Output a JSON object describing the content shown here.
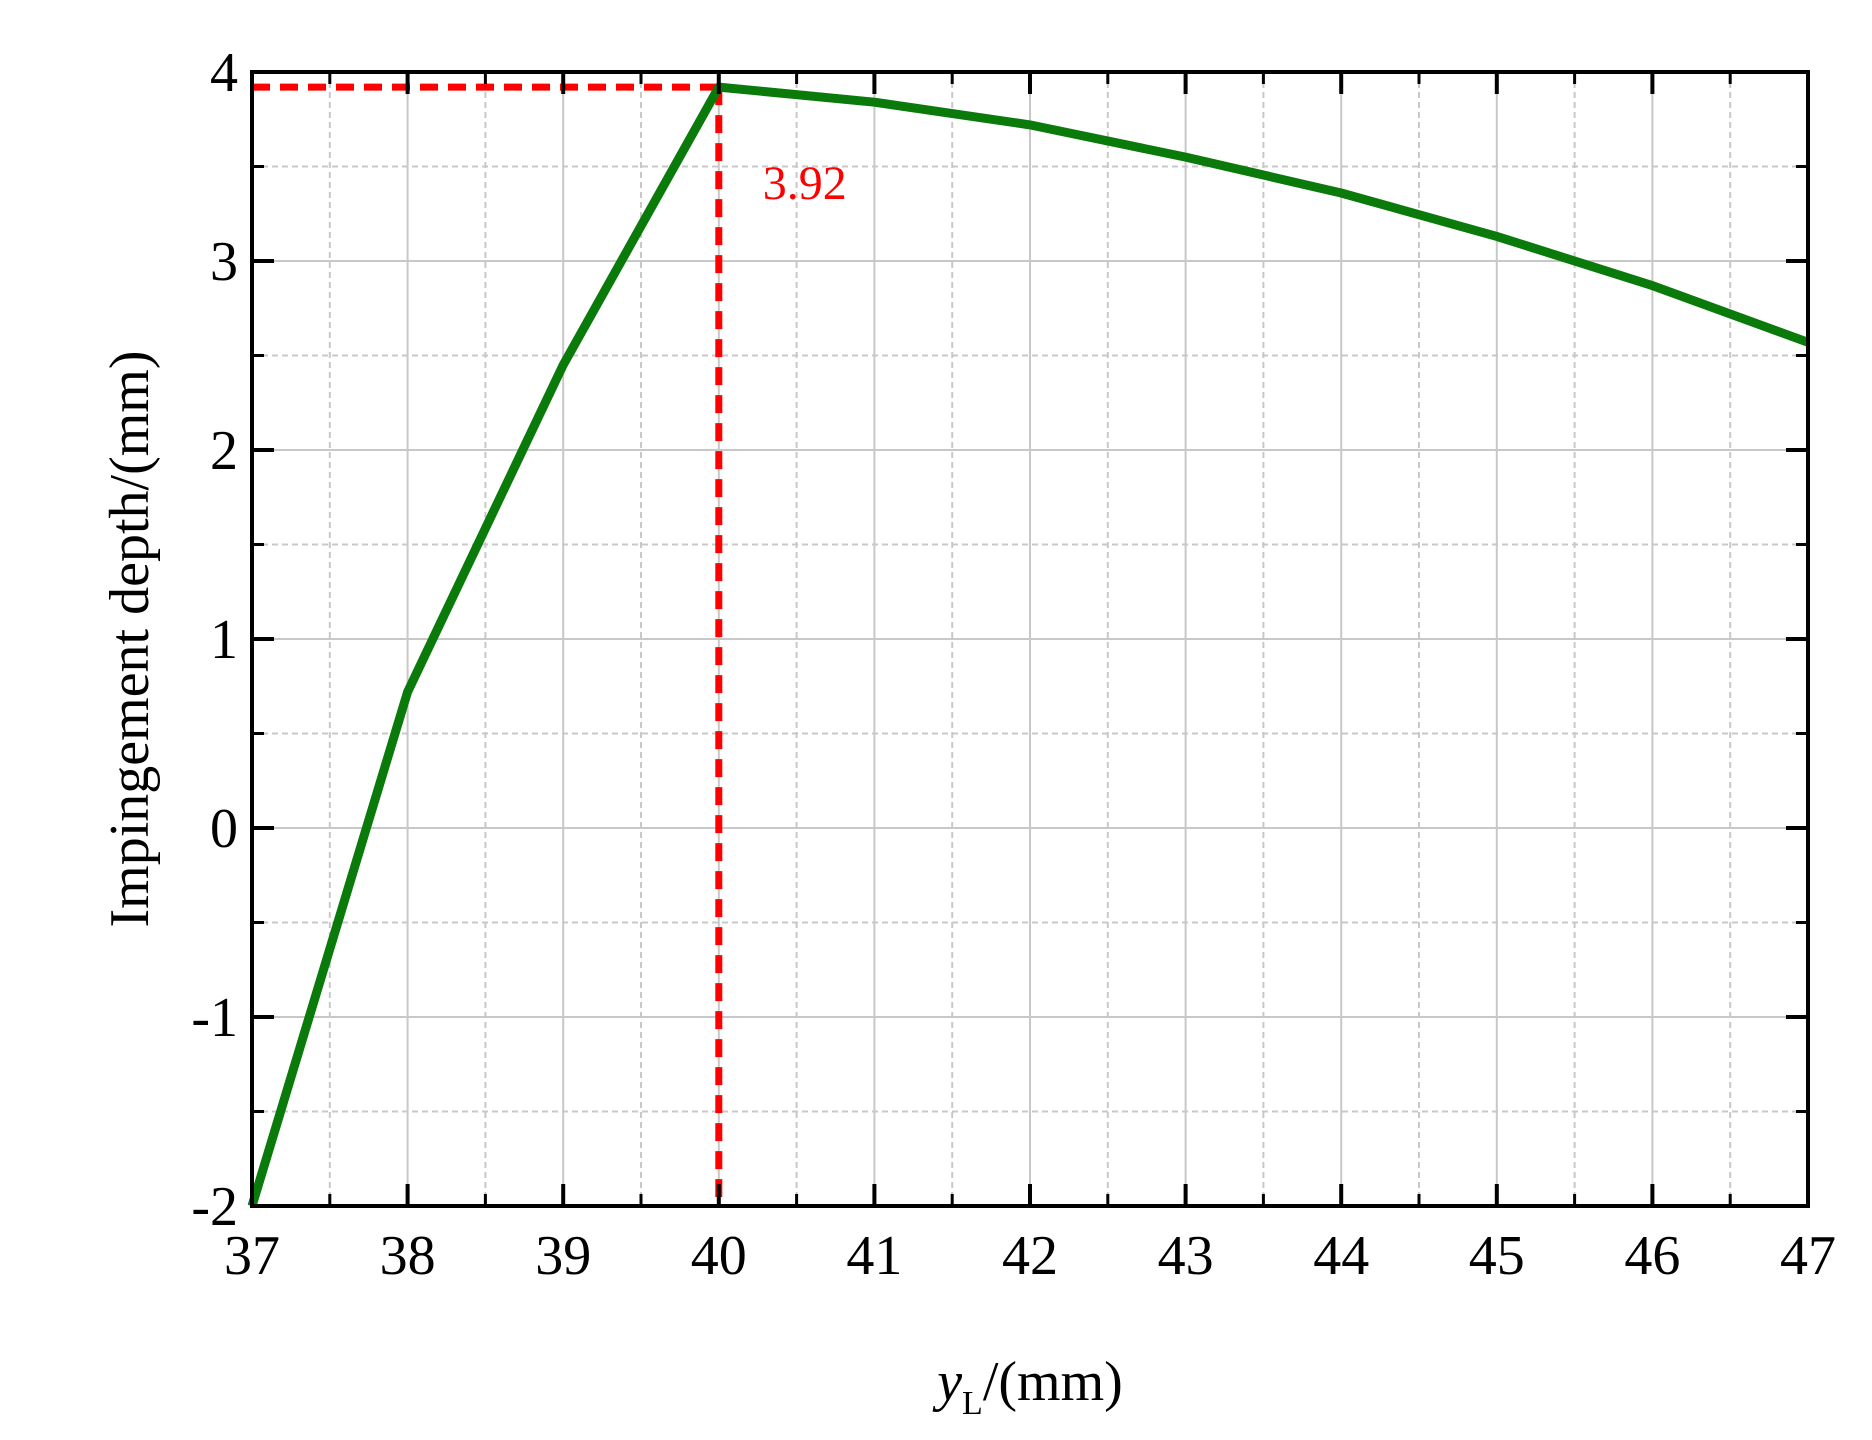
{
  "chart_data": {
    "type": "line",
    "xlabel": {
      "variable": "y",
      "subscript": "L",
      "unit": "/(mm)"
    },
    "ylabel": "Impingement depth/(mm)",
    "xlim": [
      37,
      47
    ],
    "ylim": [
      -2,
      4
    ],
    "x_ticks": [
      37,
      38,
      39,
      40,
      41,
      42,
      43,
      44,
      45,
      46,
      47
    ],
    "y_ticks": [
      -2,
      -1,
      0,
      1,
      2,
      3,
      4
    ],
    "grid": true,
    "series": [
      {
        "color": "#0a7a0a",
        "x": [
          37,
          38,
          39,
          40,
          41,
          42,
          43,
          44,
          45,
          46,
          47
        ],
        "y": [
          -2.0,
          0.72,
          2.45,
          3.92,
          3.84,
          3.72,
          3.55,
          3.36,
          3.13,
          2.87,
          2.57
        ]
      }
    ],
    "reference_lines": {
      "color": "#ff0000",
      "x": 40,
      "y": 3.92
    },
    "annotation": {
      "text": "3.92",
      "color": "#ff0000"
    }
  }
}
